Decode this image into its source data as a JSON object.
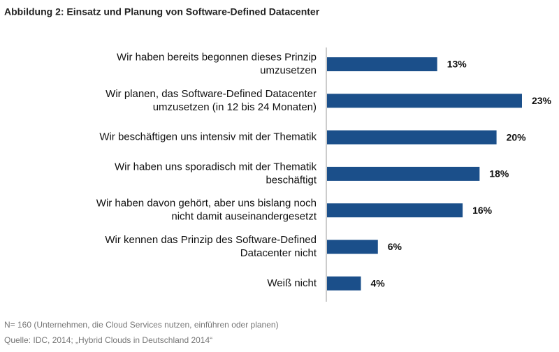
{
  "chart_data": {
    "type": "bar",
    "orientation": "horizontal",
    "title": "Abbildung 2: Einsatz und Planung von Software-Defined Datacenter",
    "categories": [
      [
        "Wir haben bereits begonnen dieses Prinzip",
        "umzusetzen"
      ],
      [
        "Wir planen, das Software-Defined Datacenter",
        "umzusetzen (in 12 bis 24 Monaten)"
      ],
      [
        "Wir beschäftigen uns intensiv mit der Thematik"
      ],
      [
        "Wir haben uns sporadisch mit der Thematik",
        "beschäftigt"
      ],
      [
        "Wir haben davon gehört, aber uns bislang noch",
        "nicht damit auseinandergesetzt"
      ],
      [
        "Wir kennen das Prinzip des Software-Defined",
        "Datacenter nicht"
      ],
      [
        "Weiß nicht"
      ]
    ],
    "values": [
      13,
      23,
      20,
      18,
      16,
      6,
      4
    ],
    "value_labels": [
      "13%",
      "23%",
      "20%",
      "18%",
      "16%",
      "6%",
      "4%"
    ],
    "color": "#1b4f8a",
    "notes": [
      "N= 160 (Unternehmen, die Cloud Services nutzen, einführen oder planen)",
      "Quelle: IDC, 2014; „Hybrid Clouds in Deutschland 2014“"
    ]
  }
}
